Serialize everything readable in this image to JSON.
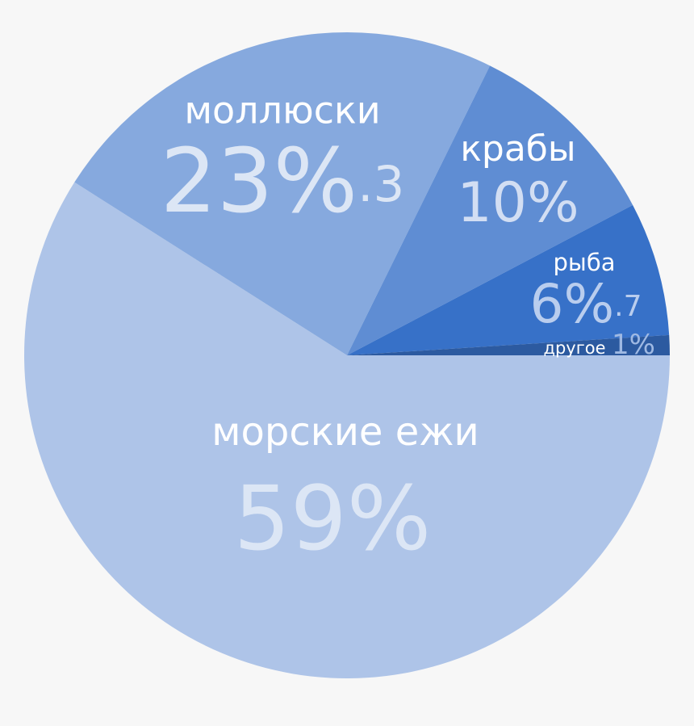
{
  "chart_data": {
    "type": "pie",
    "categories": [
      "морские ежи",
      "моллюски",
      "крабы",
      "рыба",
      "другое"
    ],
    "values": [
      59,
      23.3,
      10,
      6.7,
      1
    ],
    "value_labels": [
      "59%",
      "23%.3",
      "10%",
      "6%.7",
      "1%"
    ],
    "colors": [
      "#aec4e8",
      "#86a9de",
      "#5f8dd3",
      "#3771c8",
      "#2c5aa0"
    ]
  }
}
